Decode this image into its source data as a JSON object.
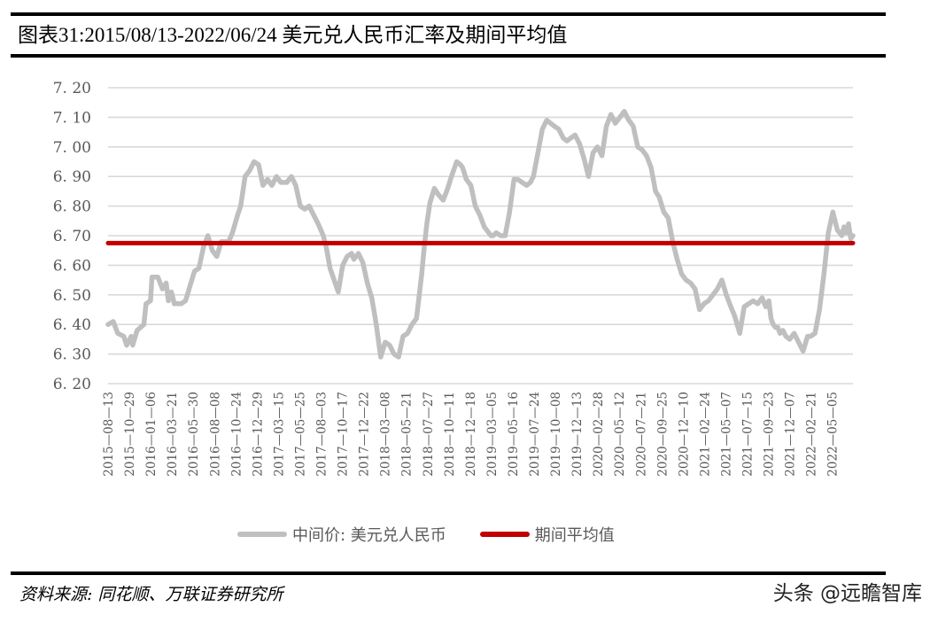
{
  "header": {
    "title": "图表31:2015/08/13-2022/06/24 美元兑人民币汇率及期间平均值"
  },
  "legend": {
    "items": [
      {
        "label": "中间价: 美元兑人民币",
        "color": "#bfbfbf"
      },
      {
        "label": "期间平均值",
        "color": "#c00000"
      }
    ]
  },
  "footer": {
    "source": "资料来源: 同花顺、万联证券研究所",
    "watermark": "头条 @远瞻智库"
  },
  "chart_data": {
    "type": "line",
    "title": "图表31:2015/08/13-2022/06/24 美元兑人民币汇率及期间平均值",
    "xlabel": "",
    "ylabel": "",
    "ylim": [
      6.2,
      7.2
    ],
    "yticks": [
      "6.20",
      "6.30",
      "6.40",
      "6.50",
      "6.60",
      "6.70",
      "6.80",
      "6.90",
      "7.00",
      "7.10",
      "7.20"
    ],
    "ytick_values": [
      6.2,
      6.3,
      6.4,
      6.5,
      6.6,
      6.7,
      6.8,
      6.9,
      7.0,
      7.1,
      7.2
    ],
    "grid": true,
    "legend_position": "bottom",
    "x_tick_labels": [
      "2015-08-13",
      "2015-10-29",
      "2016-01-06",
      "2016-03-21",
      "2016-05-30",
      "2016-08-08",
      "2016-10-24",
      "2016-12-29",
      "2017-03-15",
      "2017-05-25",
      "2017-08-03",
      "2017-10-17",
      "2017-12-22",
      "2018-03-08",
      "2018-05-21",
      "2018-07-27",
      "2018-10-11",
      "2018-12-18",
      "2019-03-05",
      "2019-05-16",
      "2019-07-24",
      "2019-10-08",
      "2019-12-13",
      "2020-02-28",
      "2020-05-12",
      "2020-07-21",
      "2020-09-25",
      "2020-12-10",
      "2021-02-24",
      "2021-05-07",
      "2021-07-15",
      "2021-09-23",
      "2021-12-07",
      "2022-02-21",
      "2022-05-05"
    ],
    "series": [
      {
        "name": "中间价: 美元兑人民币",
        "color": "#bfbfbf",
        "x_frac": [
          0.0,
          0.007,
          0.013,
          0.021,
          0.025,
          0.031,
          0.033,
          0.039,
          0.048,
          0.051,
          0.057,
          0.059,
          0.067,
          0.073,
          0.078,
          0.081,
          0.085,
          0.089,
          0.098,
          0.104,
          0.11,
          0.116,
          0.122,
          0.128,
          0.134,
          0.14,
          0.146,
          0.152,
          0.162,
          0.167,
          0.174,
          0.178,
          0.184,
          0.19,
          0.196,
          0.202,
          0.208,
          0.214,
          0.22,
          0.226,
          0.232,
          0.24,
          0.246,
          0.252,
          0.258,
          0.264,
          0.27,
          0.276,
          0.282,
          0.289,
          0.293,
          0.298,
          0.309,
          0.315,
          0.321,
          0.327,
          0.33,
          0.336,
          0.342,
          0.348,
          0.354,
          0.36,
          0.366,
          0.372,
          0.378,
          0.384,
          0.39,
          0.396,
          0.402,
          0.408,
          0.414,
          0.421,
          0.424,
          0.428,
          0.432,
          0.438,
          0.443,
          0.45,
          0.456,
          0.461,
          0.468,
          0.473,
          0.476,
          0.481,
          0.487,
          0.493,
          0.499,
          0.505,
          0.514,
          0.517,
          0.521,
          0.527,
          0.533,
          0.539,
          0.545,
          0.55,
          0.556,
          0.562,
          0.567,
          0.571,
          0.577,
          0.583,
          0.589,
          0.594,
          0.599,
          0.605,
          0.611,
          0.616,
          0.621,
          0.627,
          0.633,
          0.639,
          0.645,
          0.651,
          0.657,
          0.663,
          0.669,
          0.675,
          0.681,
          0.687,
          0.693,
          0.699,
          0.705,
          0.711,
          0.717,
          0.723,
          0.729,
          0.735,
          0.74,
          0.746,
          0.752,
          0.758,
          0.764,
          0.77,
          0.776,
          0.782,
          0.788,
          0.794,
          0.8,
          0.806,
          0.812,
          0.818,
          0.824,
          0.83,
          0.836,
          0.841,
          0.848,
          0.854,
          0.86,
          0.866,
          0.872,
          0.878,
          0.883,
          0.887,
          0.89,
          0.893,
          0.896,
          0.899,
          0.902,
          0.906,
          0.91,
          0.915,
          0.921,
          0.927,
          0.933,
          0.939,
          0.943,
          0.949,
          0.955,
          0.961,
          0.967,
          0.973,
          0.979,
          0.985,
          0.988,
          0.991,
          0.994,
          0.997,
          1.0
        ],
        "values": [
          6.4,
          6.41,
          6.37,
          6.36,
          6.33,
          6.36,
          6.33,
          6.38,
          6.4,
          6.47,
          6.48,
          6.56,
          6.56,
          6.52,
          6.54,
          6.48,
          6.51,
          6.47,
          6.47,
          6.48,
          6.53,
          6.58,
          6.59,
          6.66,
          6.7,
          6.65,
          6.63,
          6.68,
          6.68,
          6.71,
          6.77,
          6.8,
          6.9,
          6.92,
          6.95,
          6.94,
          6.87,
          6.89,
          6.87,
          6.9,
          6.88,
          6.88,
          6.9,
          6.87,
          6.8,
          6.79,
          6.8,
          6.77,
          6.74,
          6.7,
          6.66,
          6.59,
          6.51,
          6.6,
          6.63,
          6.64,
          6.62,
          6.64,
          6.61,
          6.54,
          6.49,
          6.4,
          6.29,
          6.34,
          6.33,
          6.3,
          6.29,
          6.36,
          6.37,
          6.4,
          6.42,
          6.57,
          6.65,
          6.74,
          6.81,
          6.86,
          6.84,
          6.82,
          6.86,
          6.9,
          6.95,
          6.94,
          6.93,
          6.89,
          6.87,
          6.8,
          6.77,
          6.73,
          6.7,
          6.7,
          6.71,
          6.7,
          6.7,
          6.78,
          6.89,
          6.89,
          6.88,
          6.87,
          6.88,
          6.9,
          6.98,
          7.06,
          7.09,
          7.08,
          7.07,
          7.06,
          7.03,
          7.02,
          7.03,
          7.04,
          7.01,
          6.96,
          6.9,
          6.98,
          7.0,
          6.97,
          7.07,
          7.11,
          7.08,
          7.1,
          7.12,
          7.09,
          7.07,
          7.0,
          6.99,
          6.97,
          6.93,
          6.85,
          6.83,
          6.78,
          6.76,
          6.68,
          6.62,
          6.57,
          6.55,
          6.54,
          6.52,
          6.45,
          6.47,
          6.48,
          6.5,
          6.52,
          6.55,
          6.5,
          6.46,
          6.43,
          6.37,
          6.46,
          6.47,
          6.48,
          6.47,
          6.49,
          6.46,
          6.48,
          6.42,
          6.4,
          6.39,
          6.39,
          6.37,
          6.38,
          6.36,
          6.35,
          6.37,
          6.34,
          6.31,
          6.36,
          6.36,
          6.37,
          6.45,
          6.57,
          6.71,
          6.78,
          6.72,
          6.7,
          6.73,
          6.71,
          6.74,
          6.69,
          6.7,
          6.72,
          6.7,
          6.71,
          6.7,
          6.72,
          6.71
        ]
      },
      {
        "name": "期间平均值",
        "color": "#c00000",
        "x_frac": [
          0,
          1
        ],
        "values": [
          6.675,
          6.675
        ]
      }
    ]
  }
}
